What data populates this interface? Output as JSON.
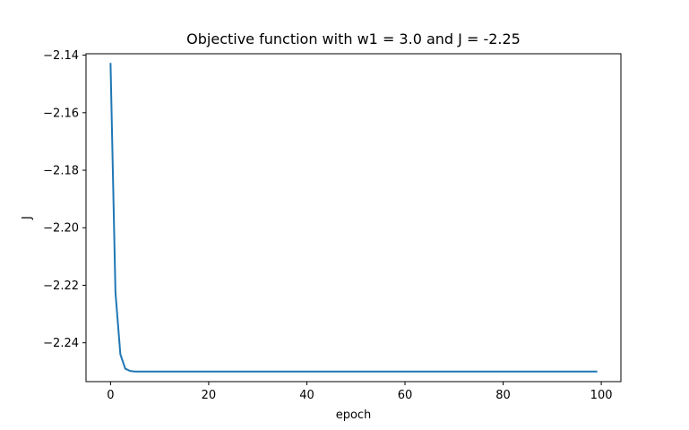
{
  "chart_data": {
    "type": "line",
    "title": "Objective function with w1 = 3.0 and J = -2.25",
    "xlabel": "epoch",
    "ylabel": "J",
    "xlim": [
      -5,
      104
    ],
    "ylim": [
      -2.2535,
      -2.1395
    ],
    "xticks": [
      0,
      20,
      40,
      60,
      80,
      100
    ],
    "xtick_labels": [
      "0",
      "20",
      "40",
      "60",
      "80",
      "100"
    ],
    "yticks": [
      -2.14,
      -2.16,
      -2.18,
      -2.2,
      -2.22,
      -2.24
    ],
    "ytick_labels": [
      "−2.14",
      "−2.16",
      "−2.18",
      "−2.20",
      "−2.22",
      "−2.24"
    ],
    "grid": false,
    "colors": {
      "line": "#1f77b4",
      "axes": "#000000",
      "background": "#ffffff"
    },
    "series": [
      {
        "x": [
          0,
          1,
          2,
          3,
          4,
          5,
          6,
          8,
          10,
          20,
          40,
          60,
          80,
          99
        ],
        "y": [
          -2.143,
          -2.2225,
          -2.244,
          -2.249,
          -2.2498,
          -2.25,
          -2.25,
          -2.25,
          -2.25,
          -2.25,
          -2.25,
          -2.25,
          -2.25,
          -2.25
        ]
      }
    ]
  }
}
